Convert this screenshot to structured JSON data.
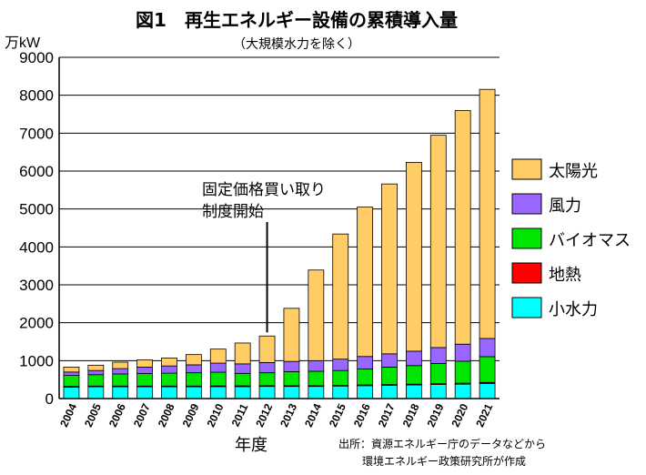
{
  "chart_data": {
    "type": "bar",
    "stacked": true,
    "title": "図1　再生エネルギー設備の累積導入量",
    "subtitle": "（大規模水力を除く）",
    "unit_label": "万kW",
    "xlabel": "年度",
    "ylim": [
      0,
      9000
    ],
    "y_ticks": [
      "0",
      "1000",
      "2000",
      "3000",
      "4000",
      "5000",
      "6000",
      "7000",
      "8000",
      "9000"
    ],
    "categories": [
      "2004",
      "2005",
      "2006",
      "2007",
      "2008",
      "2009",
      "2010",
      "2011",
      "2012",
      "2013",
      "2014",
      "2015",
      "2016",
      "2017",
      "2018",
      "2019",
      "2020",
      "2021"
    ],
    "series": [
      {
        "name": "小水力",
        "color": "#00ffff",
        "values": [
          300,
          310,
          310,
          310,
          310,
          310,
          315,
          315,
          320,
          320,
          320,
          330,
          340,
          350,
          360,
          370,
          380,
          400
        ]
      },
      {
        "name": "地熱",
        "color": "#ff0000",
        "values": [
          20,
          20,
          20,
          20,
          20,
          20,
          20,
          20,
          20,
          20,
          20,
          20,
          20,
          20,
          20,
          25,
          25,
          25
        ]
      },
      {
        "name": "バイオマス",
        "color": "#00e600",
        "values": [
          290,
          300,
          320,
          330,
          340,
          350,
          360,
          330,
          340,
          370,
          380,
          390,
          420,
          460,
          490,
          530,
          580,
          680
        ]
      },
      {
        "name": "風力",
        "color": "#9966ff",
        "values": [
          90,
          110,
          140,
          170,
          190,
          210,
          240,
          250,
          270,
          270,
          280,
          300,
          330,
          350,
          380,
          420,
          450,
          480
        ]
      },
      {
        "name": "太陽光",
        "color": "#ffcc66",
        "values": [
          130,
          140,
          170,
          190,
          210,
          270,
          370,
          550,
          700,
          1400,
          2390,
          3300,
          3940,
          4480,
          4980,
          5600,
          6160,
          6570
        ]
      }
    ],
    "legend_order": [
      "太陽光",
      "風力",
      "バイオマス",
      "地熱",
      "小水力"
    ],
    "legend_position": "right",
    "annotation": {
      "lines": [
        "固定価格買い取り",
        "制度開始"
      ],
      "category": "2012"
    },
    "source": [
      "出所：資源エネルギー庁のデータなどから",
      "環境エネルギー政策研究所が作成"
    ]
  }
}
